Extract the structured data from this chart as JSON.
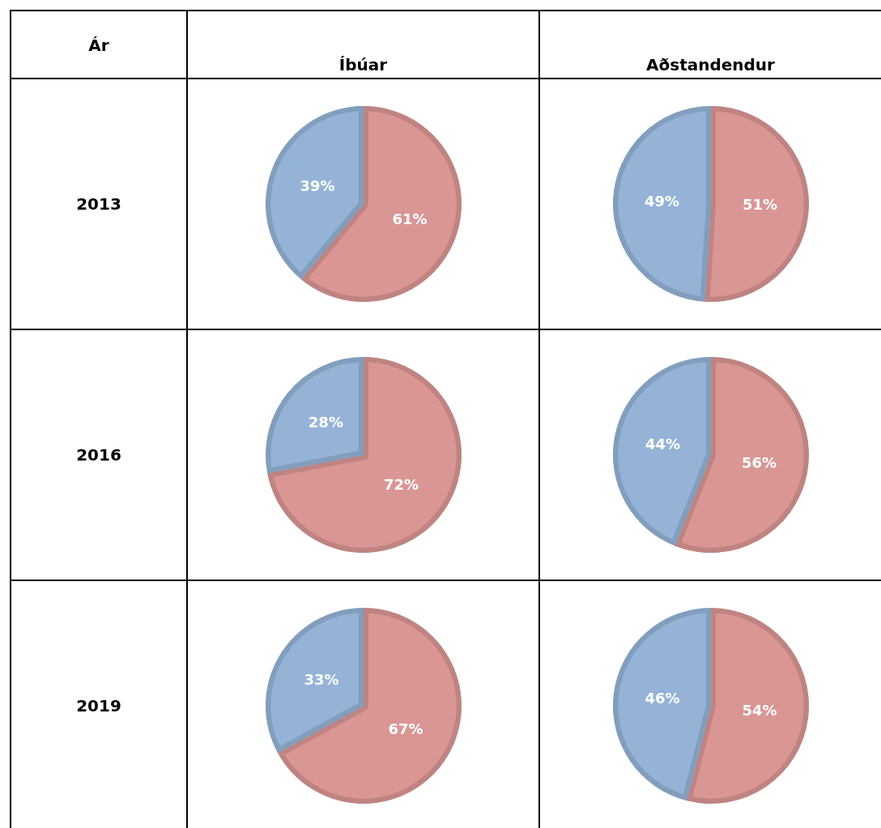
{
  "chart_data": [
    {
      "type": "other",
      "title": "Ár"
    },
    {
      "type": "other",
      "title": "Íbúar"
    },
    {
      "type": "other",
      "title": "Aðstandendur"
    },
    {
      "type": "other",
      "title": "2013"
    },
    {
      "type": "pie",
      "categories": [
        null,
        null
      ],
      "values": [
        61,
        39
      ],
      "colors": [
        "#d99694",
        "#95b3d7"
      ],
      "value_labels": [
        "61%",
        "39%"
      ]
    },
    {
      "type": "pie",
      "categories": [
        null,
        null
      ],
      "values": [
        51,
        49
      ],
      "colors": [
        "#d99694",
        "#95b3d7"
      ],
      "value_labels": [
        "51%",
        "49%"
      ]
    },
    {
      "type": "other",
      "title": "2016"
    },
    {
      "type": "pie",
      "categories": [
        null,
        null
      ],
      "values": [
        72,
        28
      ],
      "colors": [
        "#d99694",
        "#95b3d7"
      ],
      "value_labels": [
        "72%",
        "28%"
      ]
    },
    {
      "type": "pie",
      "categories": [
        null,
        null
      ],
      "values": [
        56,
        44
      ],
      "colors": [
        "#d99694",
        "#95b3d7"
      ],
      "value_labels": [
        "56%",
        "44%"
      ]
    },
    {
      "type": "other",
      "title": "2019"
    },
    {
      "type": "pie",
      "categories": [
        null,
        null
      ],
      "values": [
        67,
        33
      ],
      "colors": [
        "#d99694",
        "#95b3d7"
      ],
      "value_labels": [
        "67%",
        "33%"
      ]
    },
    {
      "type": "pie",
      "categories": [
        null,
        null
      ],
      "values": [
        54,
        46
      ],
      "colors": [
        "#d99694",
        "#95b3d7"
      ],
      "value_labels": [
        "54%",
        "46%"
      ]
    }
  ]
}
